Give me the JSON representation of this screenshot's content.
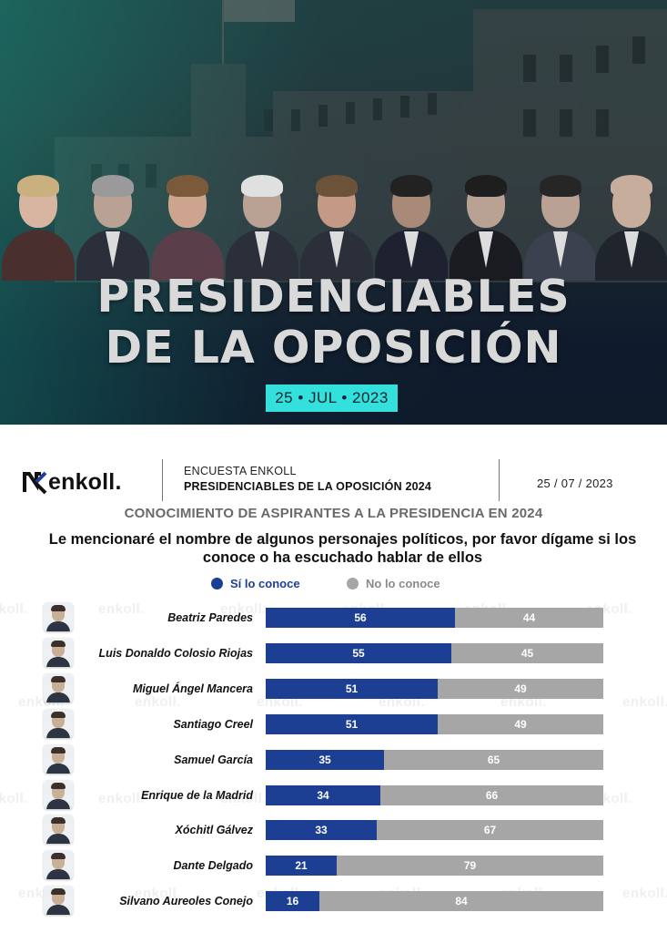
{
  "hero": {
    "title_line1": "PRESIDENCIABLES",
    "title_line2": "DE LA OPOSICIÓN",
    "date": "25 • JUL • 2023",
    "date_badge_color": "#33e0dc"
  },
  "header": {
    "logo_text": "enkoll.",
    "survey_name": "ENCUESTA ENKOLL",
    "survey_title": "PRESIDENCIABLES DE LA OPOSICIÓN 2024",
    "date": "25 / 07 / 2023"
  },
  "watermark_text": "enkoll.",
  "chart_data": {
    "type": "bar",
    "orientation": "horizontal",
    "stacked": true,
    "title": "CONOCIMIENTO DE ASPIRANTES A LA PRESIDENCIA EN 2024",
    "subtitle": "Le mencionaré el nombre de algunos personajes políticos, por favor dígame si los conoce o ha escuchado hablar de ellos",
    "categories": [
      "Beatriz Paredes",
      "Luis Donaldo Colosio Riojas",
      "Miguel Ángel Mancera",
      "Santiago Creel",
      "Samuel García",
      "Enrique de la Madrid",
      "Xóchitl Gálvez",
      "Dante Delgado",
      "Silvano Aureoles Conejo"
    ],
    "series": [
      {
        "name": "Sí lo conoce",
        "color": "#1d3f93",
        "values": [
          56,
          55,
          51,
          51,
          35,
          34,
          33,
          21,
          16
        ]
      },
      {
        "name": "No lo conoce",
        "color": "#a6a6a6",
        "values": [
          44,
          45,
          49,
          49,
          65,
          66,
          67,
          79,
          84
        ]
      }
    ],
    "xlim": [
      0,
      100
    ],
    "legend_position": "top",
    "grid": false,
    "data_labels": true
  }
}
